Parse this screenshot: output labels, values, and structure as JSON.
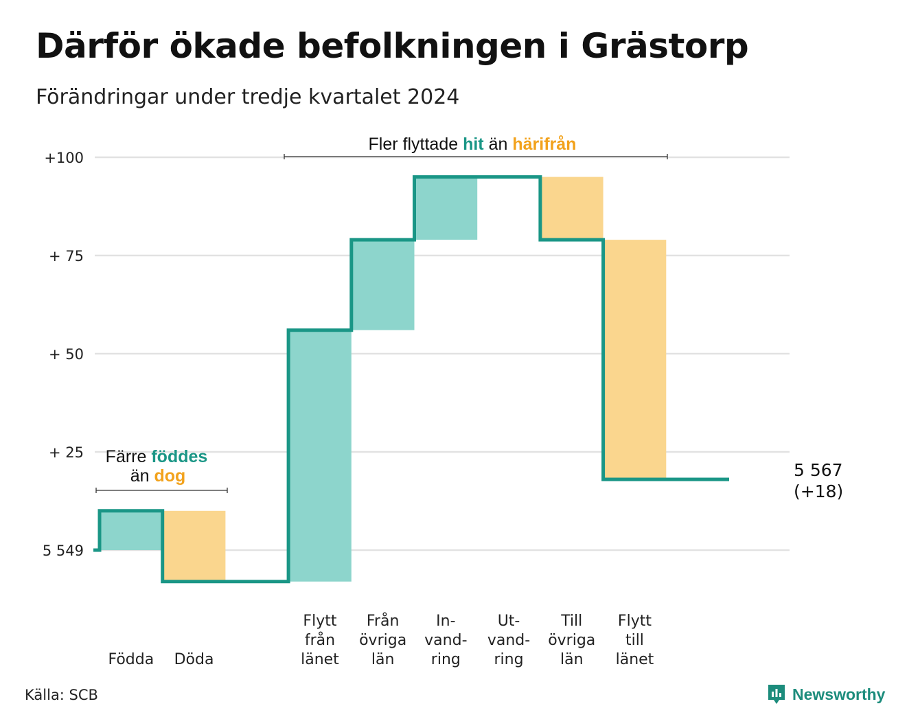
{
  "title": "Därför ökade befolkningen i Grästorp",
  "subtitle": "Förändringar under tredje kvartalet 2024",
  "source": "Källa: SCB",
  "brand": "Newsworthy",
  "colors": {
    "teal_line": "#1a9686",
    "teal_fill": "#8dd5cc",
    "orange_fill": "#fad68e",
    "orange_text": "#f2a21c",
    "grid": "#e2e2e2"
  },
  "annotations": {
    "births": {
      "line1_prefix": "Färre",
      "line1_highlight": "föddes",
      "line2_prefix": "än",
      "line2_highlight": "dog"
    },
    "migration": {
      "prefix": "Fler flyttade",
      "hit": "hit",
      "mid": "än",
      "away": "härifrån"
    }
  },
  "chart_data": {
    "type": "waterfall",
    "title": "Därför ökade befolkningen i Grästorp",
    "subtitle": "Förändringar under tredje kvartalet 2024",
    "y_base": 5549,
    "ylim": [
      -8,
      108
    ],
    "y_ticks": [
      {
        "value": 0,
        "label": "5 549"
      },
      {
        "value": 25,
        "label": "+ 25"
      },
      {
        "value": 50,
        "label": "+ 50"
      },
      {
        "value": 75,
        "label": "+ 75"
      },
      {
        "value": 100,
        "label": "+100"
      }
    ],
    "grid": true,
    "categories": [
      {
        "label": [
          "Födda"
        ],
        "change": 10,
        "kind": "in"
      },
      {
        "label": [
          "Döda"
        ],
        "change": -18,
        "kind": "out"
      },
      {
        "label": [],
        "change": 0,
        "kind": "gap"
      },
      {
        "label": [
          "Flytt",
          "från",
          "länet"
        ],
        "change": 64,
        "kind": "in"
      },
      {
        "label": [
          "Från",
          "övriga",
          "län"
        ],
        "change": 23,
        "kind": "in"
      },
      {
        "label": [
          "In-",
          "vand-",
          "ring"
        ],
        "change": 16,
        "kind": "in"
      },
      {
        "label": [
          "Ut-",
          "vand-",
          "ring"
        ],
        "change": 0,
        "kind": "out"
      },
      {
        "label": [
          "Till",
          "övriga",
          "län"
        ],
        "change": -16,
        "kind": "out"
      },
      {
        "label": [
          "Flytt",
          "till",
          "länet"
        ],
        "change": -61,
        "kind": "out"
      },
      {
        "label": [],
        "change": 0,
        "kind": "gap"
      }
    ],
    "end_value": {
      "label": "5 567",
      "change_label": "(+18)",
      "value": 18
    }
  }
}
